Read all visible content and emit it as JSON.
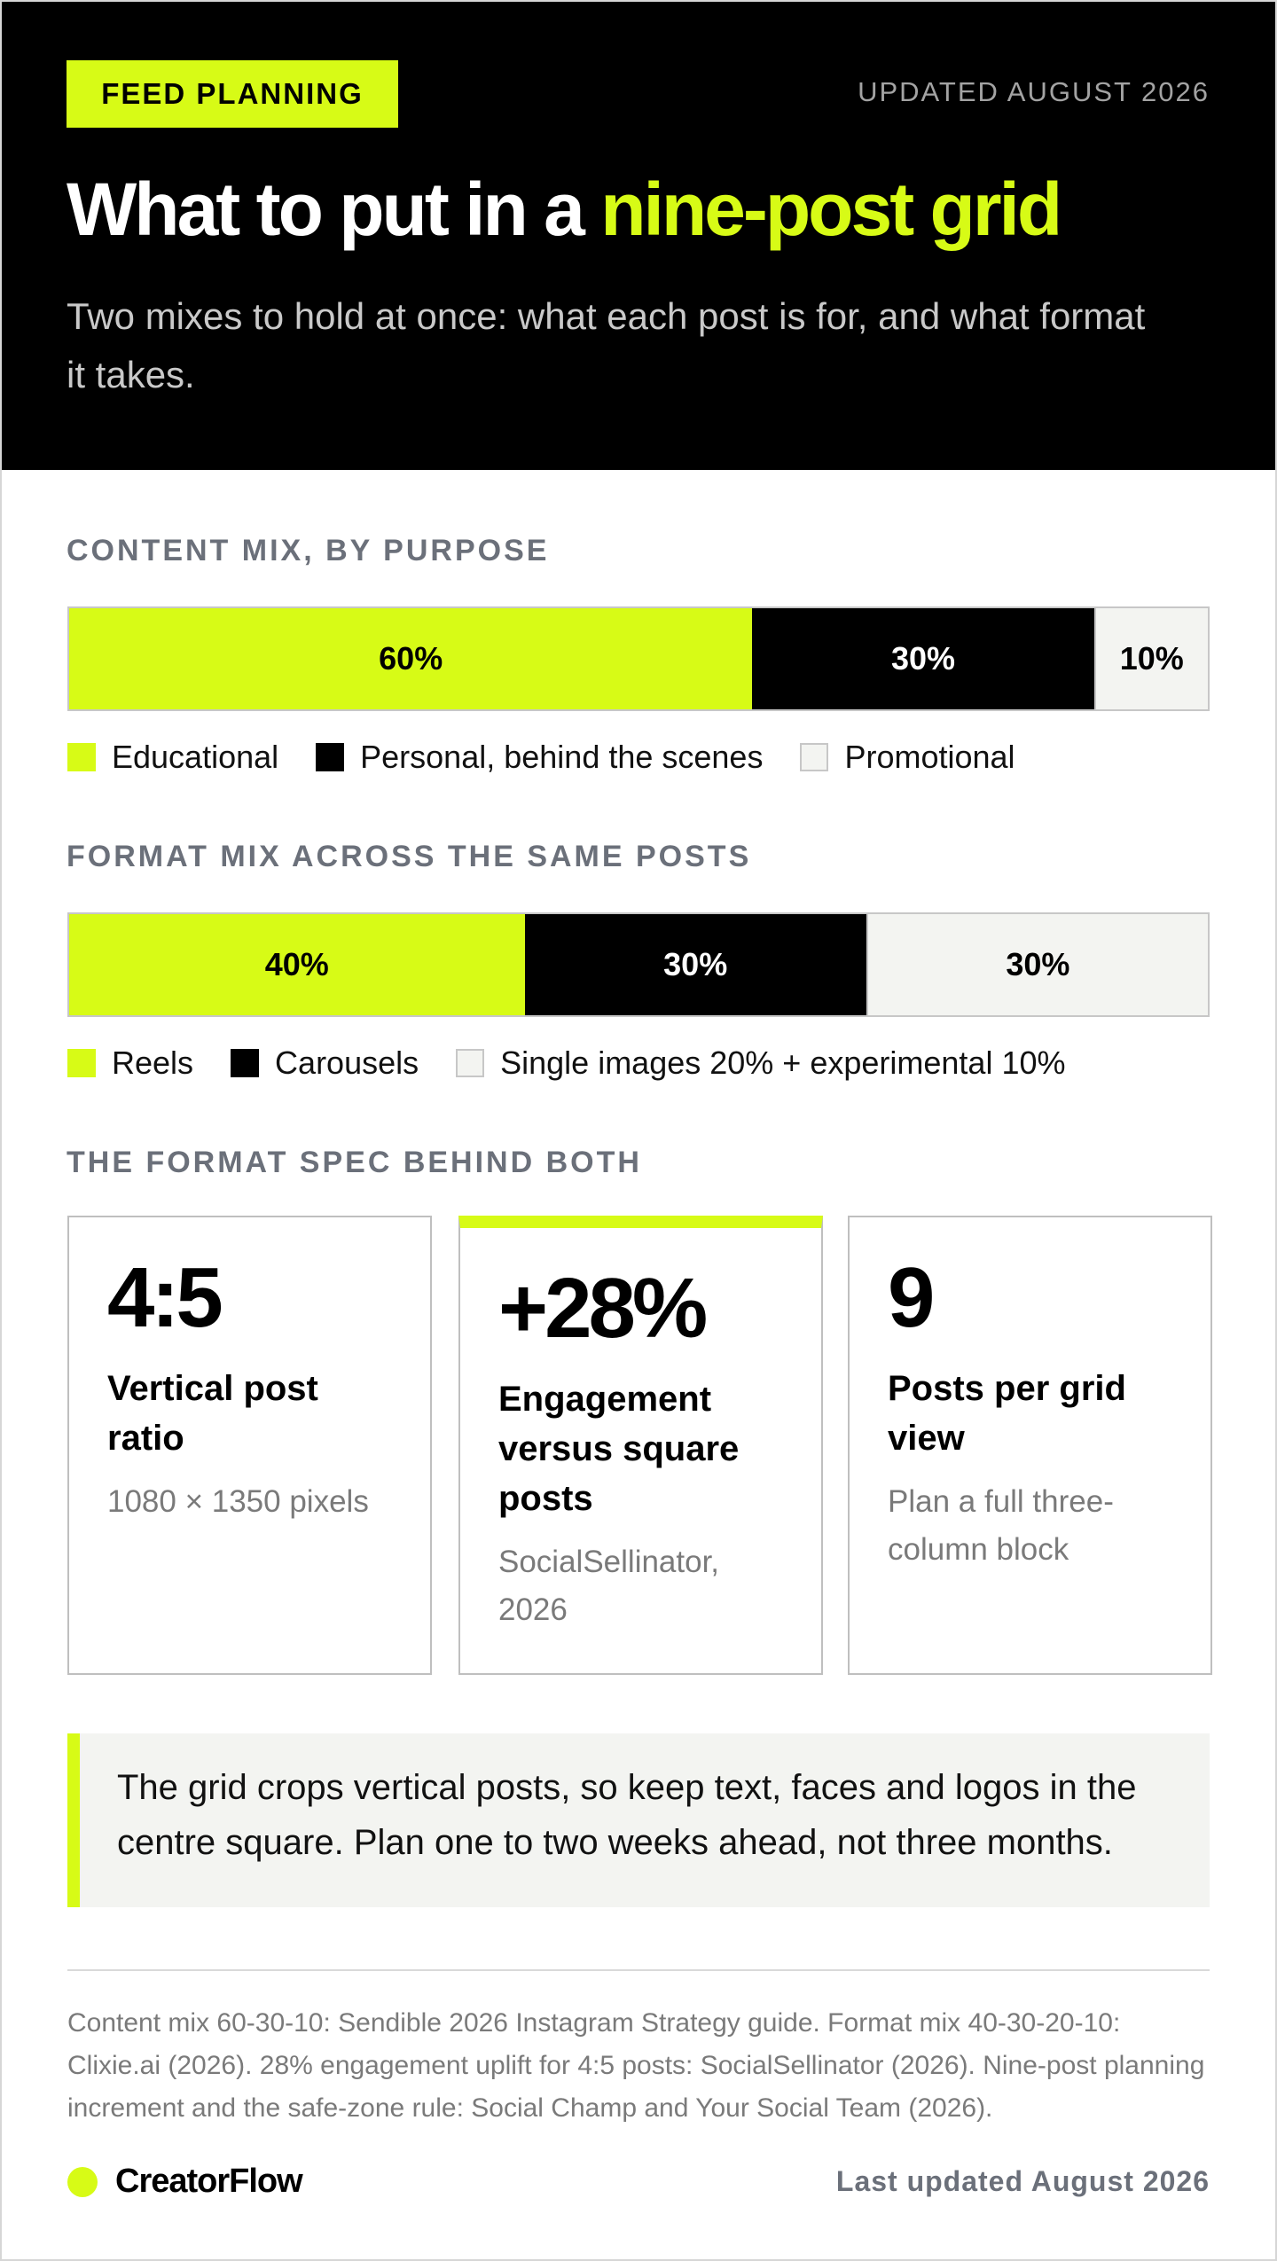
{
  "header": {
    "tag": "FEED PLANNING",
    "updated": "UPDATED AUGUST 2026",
    "title_prefix": "What to put in a ",
    "title_highlight": "nine-post grid",
    "subtitle": "Two mixes to hold at once: what each post is for, and what format it takes."
  },
  "content_mix": {
    "label": "CONTENT MIX, BY PURPOSE",
    "segments": [
      {
        "value_label": "60%",
        "legend": "Educational"
      },
      {
        "value_label": "30%",
        "legend": "Personal, behind the scenes"
      },
      {
        "value_label": "10%",
        "legend": "Promotional"
      }
    ]
  },
  "format_mix": {
    "label": "FORMAT MIX ACROSS THE SAME POSTS",
    "segments": [
      {
        "value_label": "40%",
        "legend": "Reels"
      },
      {
        "value_label": "30%",
        "legend": "Carousels"
      },
      {
        "value_label": "30%",
        "legend": "Single images 20% + experimental 10%"
      }
    ]
  },
  "spec": {
    "label": "THE FORMAT SPEC BEHIND BOTH",
    "cards": [
      {
        "big": "4:5",
        "label": "Vertical post ratio",
        "note": "1080 × 1350 pixels"
      },
      {
        "big": "+28%",
        "label": "Engagement versus square posts",
        "note": "SocialSellinator, 2026"
      },
      {
        "big": "9",
        "label": "Posts per grid view",
        "note": "Plan a full three-column block"
      }
    ]
  },
  "callout": "The grid crops vertical posts, so keep text, faces and logos in the centre square. Plan one to two weeks ahead, not three months.",
  "sources": "Content mix 60-30-10: Sendible 2026 Instagram Strategy guide. Format mix 40-30-20-10: Clixie.ai (2026). 28% engagement uplift for 4:5 posts: SocialSellinator (2026). Nine-post planning increment and the safe-zone rule: Social Champ and Your Social Team (2026).",
  "footer": {
    "brand": "CreatorFlow",
    "updated": "Last updated August 2026"
  },
  "colors": {
    "accent": "#d7fb16",
    "dark": "#000000",
    "light": "#f3f4f1"
  },
  "chart_data": [
    {
      "type": "bar",
      "stacked": true,
      "orientation": "horizontal",
      "title": "CONTENT MIX, BY PURPOSE",
      "categories": [
        "Educational",
        "Personal, behind the scenes",
        "Promotional"
      ],
      "values": [
        60,
        30,
        10
      ],
      "unit": "%"
    },
    {
      "type": "bar",
      "stacked": true,
      "orientation": "horizontal",
      "title": "FORMAT MIX ACROSS THE SAME POSTS",
      "categories": [
        "Reels",
        "Carousels",
        "Single images 20% + experimental 10%"
      ],
      "values": [
        40,
        30,
        30
      ],
      "unit": "%"
    }
  ]
}
